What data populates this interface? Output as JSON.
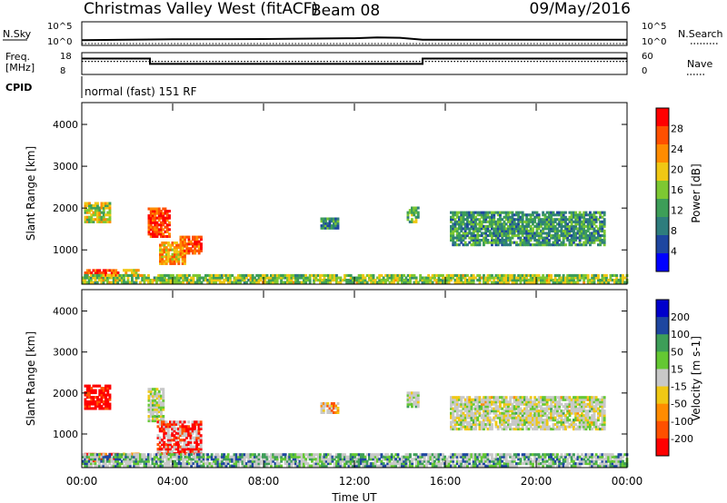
{
  "header": {
    "station": "Christmas Valley West (fitACF)",
    "beam": "Beam 08",
    "date": "09/May/2016"
  },
  "top_panels": {
    "nsky_label": "N.Sky",
    "nsky_ticks": [
      "10^5",
      "10^0"
    ],
    "nsearch_label": "N.Search",
    "nsearch_ticks": [
      "10^5",
      "10^0"
    ],
    "freq_label": [
      "Freq.",
      "[MHz]"
    ],
    "freq_ticks": [
      "18",
      "8"
    ],
    "nave_label": "Nave",
    "nave_ticks": [
      "60",
      "0"
    ],
    "cpid_label": "CPID",
    "cpid_text": "normal (fast) 151 RF"
  },
  "colors": {
    "power_scale": [
      "#0000ff",
      "#1e46a0",
      "#2e7d7d",
      "#3d9e58",
      "#7dc832",
      "#f0c814",
      "#ff8c00",
      "#ff5000",
      "#ff0000"
    ],
    "velocity_scale": [
      "#ff0000",
      "#ff5000",
      "#ff8c00",
      "#f0c814",
      "#c8c8c8",
      "#64c832",
      "#3d9e58",
      "#1e46a0",
      "#0000cc"
    ],
    "ground_gray": "#c8c8c8"
  },
  "chart_data": [
    {
      "type": "line",
      "title": "N.Sky / N.Search",
      "x": [
        "00:00",
        "03:00",
        "04:00",
        "08:00",
        "12:00",
        "13:00",
        "14:00",
        "15:00",
        "16:00",
        "20:00",
        "24:00"
      ],
      "series": [
        {
          "name": "N.Sky",
          "values": [
            10,
            14,
            16,
            18,
            28,
            40,
            35,
            12,
            12,
            12,
            12
          ]
        },
        {
          "name": "N.Search",
          "values": [
            0,
            0,
            0,
            0,
            0,
            0,
            0,
            0,
            0,
            0,
            0
          ]
        }
      ],
      "ylim": [
        1,
        100000
      ]
    },
    {
      "type": "line",
      "title": "Freq. [MHz] / Nave",
      "x": [
        "00:00",
        "03:00",
        "03:00",
        "15:00",
        "15:00",
        "24:00"
      ],
      "series": [
        {
          "name": "Freq.",
          "values": [
            15.5,
            15.5,
            12.8,
            12.8,
            15.5,
            15.5
          ]
        },
        {
          "name": "Nave",
          "values": [
            12,
            12,
            12,
            12,
            12,
            12
          ]
        }
      ],
      "ylim": [
        8,
        18
      ]
    },
    {
      "type": "heatmap",
      "ylabel": "Slant Range [km]",
      "colorbar_label": "Power [dB]",
      "colorbar_ticks": [
        "28",
        "24",
        "20",
        "16",
        "12",
        "8",
        "4"
      ],
      "x_range_hours": [
        0,
        24
      ],
      "ylim": [
        180,
        4500
      ],
      "y_ticks": [
        "4000",
        "3000",
        "2000",
        "1000"
      ],
      "regions": [
        {
          "t0": 0.1,
          "t1": 1.2,
          "r0": 1650,
          "r1": 2100,
          "level": 0.55
        },
        {
          "t0": 0.1,
          "t1": 1.6,
          "r0": 320,
          "r1": 520,
          "level": 0.85
        },
        {
          "t0": 1.8,
          "t1": 2.5,
          "r0": 380,
          "r1": 520,
          "level": 0.6
        },
        {
          "t0": 2.9,
          "t1": 3.8,
          "r0": 1300,
          "r1": 2000,
          "level": 0.88
        },
        {
          "t0": 3.4,
          "t1": 4.5,
          "r0": 650,
          "r1": 1200,
          "level": 0.7
        },
        {
          "t0": 4.3,
          "t1": 5.2,
          "r0": 900,
          "r1": 1300,
          "level": 0.82
        },
        {
          "t0": 10.5,
          "t1": 11.3,
          "r0": 1500,
          "r1": 1750,
          "level": 0.3
        },
        {
          "t0": 14.3,
          "t1": 14.8,
          "r0": 1650,
          "r1": 2000,
          "level": 0.45
        },
        {
          "t0": 16.2,
          "t1": 23,
          "r0": 1100,
          "r1": 1900,
          "level": 0.35
        },
        {
          "t0": 0,
          "t1": 24,
          "r0": 200,
          "r1": 420,
          "level": 0.5
        }
      ]
    },
    {
      "type": "heatmap",
      "ylabel": "Slant Range [km]",
      "colorbar_label": "Velocity [m s-1]",
      "colorbar_ticks": [
        "200",
        "100",
        "50",
        "15",
        "-15",
        "-50",
        "-100",
        "-200"
      ],
      "x_range_hours": [
        0,
        24
      ],
      "ylim": [
        180,
        4500
      ],
      "y_ticks": [
        "4000",
        "3000",
        "2000",
        "1000"
      ],
      "x_ticks": [
        "00:00",
        "04:00",
        "08:00",
        "12:00",
        "16:00",
        "20:00",
        "00:00"
      ],
      "xlabel": "Time UT",
      "regions": [
        {
          "t0": 0.1,
          "t1": 1.2,
          "r0": 1600,
          "r1": 2200,
          "level": 0.02
        },
        {
          "t0": 0.1,
          "t1": 1.6,
          "r0": 320,
          "r1": 520,
          "level": 0.08
        },
        {
          "t0": 1.8,
          "t1": 2.5,
          "r0": 380,
          "r1": 520,
          "level": 0.25
        },
        {
          "t0": 2.9,
          "t1": 3.6,
          "r0": 1300,
          "r1": 2100,
          "level": 0.5
        },
        {
          "t0": 3.3,
          "t1": 5.2,
          "r0": 500,
          "r1": 1300,
          "level": 0.02
        },
        {
          "t0": 10.5,
          "t1": 11.3,
          "r0": 1500,
          "r1": 1750,
          "level": 0.3
        },
        {
          "t0": 14.3,
          "t1": 14.8,
          "r0": 1650,
          "r1": 2000,
          "level": 0.5
        },
        {
          "t0": 16.2,
          "t1": 23,
          "r0": 1100,
          "r1": 1900,
          "level": 0.5
        },
        {
          "t0": 0,
          "t1": 24,
          "r0": 200,
          "r1": 480,
          "level": 0.7
        }
      ]
    }
  ]
}
